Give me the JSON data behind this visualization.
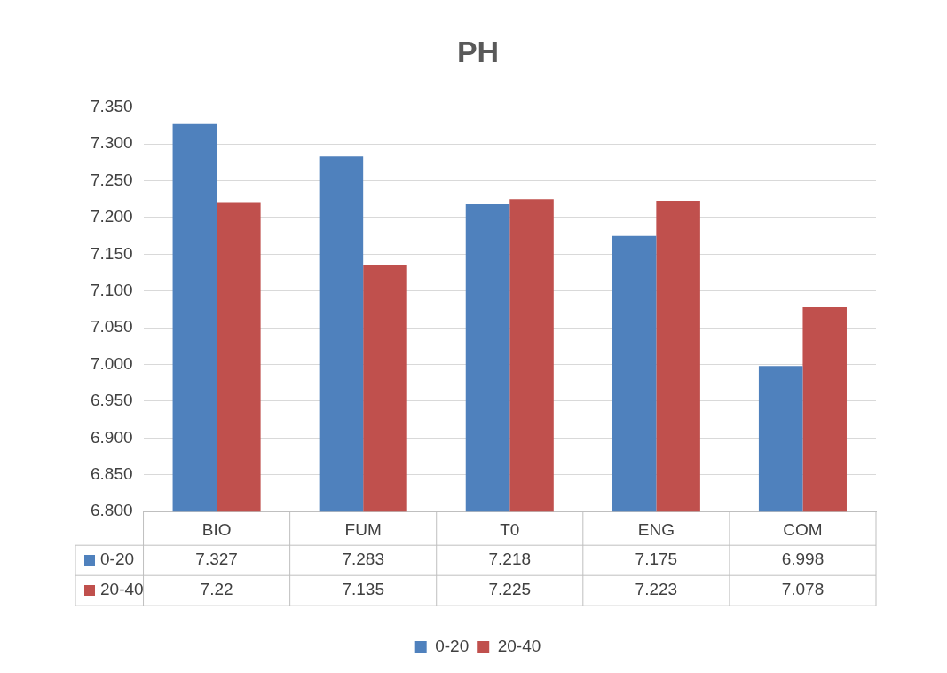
{
  "chart_data": {
    "type": "bar",
    "title": "PH",
    "categories": [
      "BIO",
      "FUM",
      "T0",
      "ENG",
      "COM"
    ],
    "series": [
      {
        "name": "0-20",
        "color": "#4f81bd",
        "values": [
          7.327,
          7.283,
          7.218,
          7.175,
          6.998
        ]
      },
      {
        "name": "20-40",
        "color": "#c0504d",
        "values": [
          7.22,
          7.135,
          7.225,
          7.223,
          7.078
        ]
      }
    ],
    "ylim": [
      6.8,
      7.35
    ],
    "yticks": [
      {
        "value": 6.8,
        "label": "6.800"
      },
      {
        "value": 6.85,
        "label": "6.850"
      },
      {
        "value": 6.9,
        "label": "6.900"
      },
      {
        "value": 6.95,
        "label": "6.950"
      },
      {
        "value": 7.0,
        "label": "7.000"
      },
      {
        "value": 7.05,
        "label": "7.050"
      },
      {
        "value": 7.1,
        "label": "7.100"
      },
      {
        "value": 7.15,
        "label": "7.150"
      },
      {
        "value": 7.2,
        "label": "7.200"
      },
      {
        "value": 7.25,
        "label": "7.250"
      },
      {
        "value": 7.3,
        "label": "7.300"
      },
      {
        "value": 7.35,
        "label": "7.350"
      }
    ],
    "grid": "y",
    "legend": "bottom",
    "data_labels": true
  }
}
